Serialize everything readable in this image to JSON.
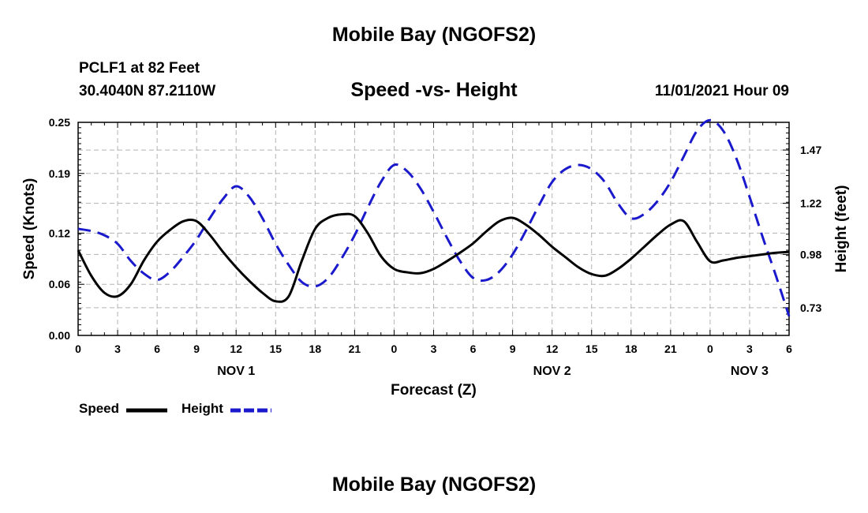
{
  "page": {
    "title_top": "Mobile Bay (NGOFS2)",
    "title_bottom": "Mobile Bay (NGOFS2)",
    "station": "PCLF1 at 82 Feet",
    "coords": "30.4040N  87.2110W",
    "datetime": "11/01/2021 Hour 09"
  },
  "chart_data": {
    "type": "line",
    "title": "Speed -vs- Height",
    "xlabel": "Forecast (Z)",
    "ylabel_left": "Speed (Knots)",
    "ylabel_right": "Height (feet)",
    "x_unit": "hours from 00Z Nov 1",
    "xlim": [
      0,
      54
    ],
    "ylim_left": [
      0,
      0.25
    ],
    "ylim_right": [
      0.6,
      1.6
    ],
    "left_ticks": [
      "0.00",
      "0.06",
      "0.12",
      "0.19",
      "0.25"
    ],
    "right_ticks": [
      "0.73",
      "0.98",
      "1.22",
      "1.47"
    ],
    "x_tick_labels": [
      "0",
      "3",
      "6",
      "9",
      "12",
      "15",
      "18",
      "21",
      "0",
      "3",
      "6",
      "9",
      "12",
      "15",
      "18",
      "21",
      "0",
      "3",
      "6"
    ],
    "date_labels": [
      {
        "label": "NOV 1",
        "hour": 12
      },
      {
        "label": "NOV 2",
        "hour": 36
      },
      {
        "label": "NOV 3",
        "hour": 51
      }
    ],
    "grid": true,
    "legend": "bottom-left",
    "series": [
      {
        "name": "Speed",
        "axis": "left",
        "color": "#000000",
        "style": "solid",
        "points": [
          [
            0,
            0.1
          ],
          [
            1,
            0.07
          ],
          [
            2,
            0.05
          ],
          [
            3,
            0.046
          ],
          [
            4,
            0.06
          ],
          [
            5,
            0.088
          ],
          [
            6,
            0.11
          ],
          [
            7,
            0.124
          ],
          [
            8,
            0.134
          ],
          [
            9,
            0.134
          ],
          [
            10,
            0.118
          ],
          [
            11,
            0.098
          ],
          [
            12,
            0.08
          ],
          [
            13,
            0.064
          ],
          [
            14,
            0.05
          ],
          [
            15,
            0.04
          ],
          [
            16,
            0.046
          ],
          [
            17,
            0.088
          ],
          [
            18,
            0.125
          ],
          [
            19,
            0.138
          ],
          [
            20,
            0.142
          ],
          [
            21,
            0.14
          ],
          [
            22,
            0.12
          ],
          [
            23,
            0.093
          ],
          [
            24,
            0.078
          ],
          [
            25,
            0.074
          ],
          [
            26,
            0.073
          ],
          [
            27,
            0.078
          ],
          [
            28,
            0.087
          ],
          [
            29,
            0.097
          ],
          [
            30,
            0.108
          ],
          [
            31,
            0.122
          ],
          [
            32,
            0.134
          ],
          [
            33,
            0.138
          ],
          [
            34,
            0.13
          ],
          [
            35,
            0.118
          ],
          [
            36,
            0.104
          ],
          [
            37,
            0.092
          ],
          [
            38,
            0.08
          ],
          [
            39,
            0.072
          ],
          [
            40,
            0.07
          ],
          [
            41,
            0.078
          ],
          [
            42,
            0.09
          ],
          [
            43,
            0.104
          ],
          [
            44,
            0.118
          ],
          [
            45,
            0.13
          ],
          [
            46,
            0.134
          ],
          [
            47,
            0.11
          ],
          [
            48,
            0.087
          ],
          [
            49,
            0.088
          ],
          [
            50,
            0.091
          ],
          [
            51,
            0.093
          ],
          [
            52,
            0.095
          ],
          [
            53,
            0.097
          ],
          [
            54,
            0.098
          ]
        ]
      },
      {
        "name": "Height",
        "axis": "right",
        "color": "#1a1acc",
        "style": "dashed",
        "points": [
          [
            0,
            1.1
          ],
          [
            1,
            1.09
          ],
          [
            2,
            1.07
          ],
          [
            3,
            1.03
          ],
          [
            4,
            0.95
          ],
          [
            5,
            0.89
          ],
          [
            6,
            0.86
          ],
          [
            7,
            0.9
          ],
          [
            8,
            0.97
          ],
          [
            9,
            1.05
          ],
          [
            10,
            1.15
          ],
          [
            11,
            1.24
          ],
          [
            12,
            1.3
          ],
          [
            13,
            1.25
          ],
          [
            14,
            1.15
          ],
          [
            15,
            1.03
          ],
          [
            16,
            0.93
          ],
          [
            17,
            0.85
          ],
          [
            18,
            0.83
          ],
          [
            19,
            0.87
          ],
          [
            20,
            0.96
          ],
          [
            21,
            1.07
          ],
          [
            22,
            1.2
          ],
          [
            23,
            1.32
          ],
          [
            24,
            1.4
          ],
          [
            25,
            1.37
          ],
          [
            26,
            1.29
          ],
          [
            27,
            1.18
          ],
          [
            28,
            1.06
          ],
          [
            29,
            0.95
          ],
          [
            30,
            0.87
          ],
          [
            31,
            0.86
          ],
          [
            32,
            0.9
          ],
          [
            33,
            0.98
          ],
          [
            34,
            1.09
          ],
          [
            35,
            1.21
          ],
          [
            36,
            1.32
          ],
          [
            37,
            1.38
          ],
          [
            38,
            1.4
          ],
          [
            39,
            1.38
          ],
          [
            40,
            1.32
          ],
          [
            41,
            1.22
          ],
          [
            42,
            1.15
          ],
          [
            43,
            1.17
          ],
          [
            44,
            1.23
          ],
          [
            45,
            1.32
          ],
          [
            46,
            1.44
          ],
          [
            47,
            1.56
          ],
          [
            48,
            1.61
          ],
          [
            49,
            1.56
          ],
          [
            50,
            1.43
          ],
          [
            51,
            1.25
          ],
          [
            52,
            1.06
          ],
          [
            53,
            0.88
          ],
          [
            54,
            0.69
          ]
        ]
      }
    ]
  }
}
